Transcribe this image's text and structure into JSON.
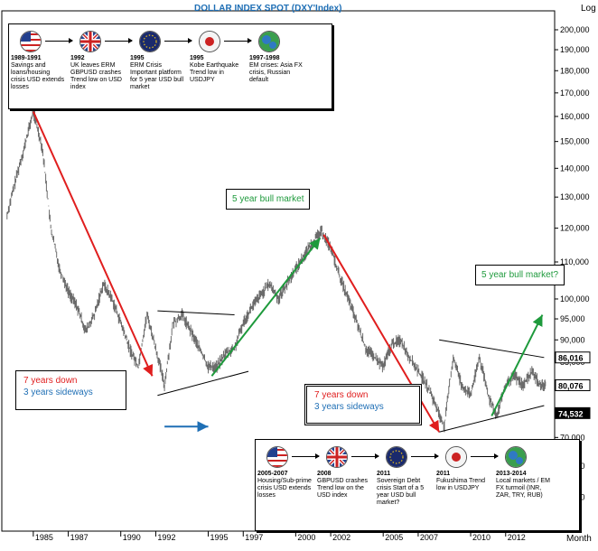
{
  "chart_data": {
    "type": "line",
    "title": "DOLLAR INDEX SPOT  (DXY'Index)",
    "y_axis_label": "Log",
    "x_axis_label": "Month",
    "y_ticks": [
      "60,000",
      "65,000",
      "70,000",
      "75,000",
      "80,000",
      "85,000",
      "90,000",
      "95,000",
      "100,000",
      "110,000",
      "120,000",
      "130,000",
      "140,000",
      "150,000",
      "160,000",
      "170,000",
      "180,000",
      "190,000",
      "200,000"
    ],
    "x_ticks": [
      "1985",
      "1987",
      "1990",
      "1992",
      "1995",
      "1997",
      "2000",
      "2002",
      "2005",
      "2007",
      "2010",
      "2012"
    ],
    "ylim": [
      55,
      210
    ],
    "y_scale": "log",
    "price_labels": [
      "86,016",
      "80,076",
      "74,532"
    ],
    "series": [
      {
        "values_by_year": [
          [
            1983.5,
            124
          ],
          [
            1984.0,
            136
          ],
          [
            1984.5,
            148
          ],
          [
            1985.0,
            162
          ],
          [
            1985.5,
            148
          ],
          [
            1986.0,
            120
          ],
          [
            1986.5,
            108
          ],
          [
            1987.0,
            102
          ],
          [
            1987.5,
            98
          ],
          [
            1988.0,
            92
          ],
          [
            1988.5,
            96
          ],
          [
            1989.0,
            104
          ],
          [
            1989.5,
            100
          ],
          [
            1990.0,
            94
          ],
          [
            1990.5,
            88
          ],
          [
            1991.0,
            84
          ],
          [
            1991.5,
            96
          ],
          [
            1992.0,
            88
          ],
          [
            1992.5,
            80
          ],
          [
            1993.0,
            94
          ],
          [
            1993.5,
            96
          ],
          [
            1994.0,
            92
          ],
          [
            1994.5,
            88
          ],
          [
            1995.0,
            84
          ],
          [
            1995.5,
            84
          ],
          [
            1996.0,
            87
          ],
          [
            1996.5,
            88
          ],
          [
            1997.0,
            94
          ],
          [
            1997.5,
            98
          ],
          [
            1998.0,
            101
          ],
          [
            1998.5,
            104
          ],
          [
            1999.0,
            100
          ],
          [
            1999.5,
            104
          ],
          [
            2000.0,
            108
          ],
          [
            2000.5,
            112
          ],
          [
            2001.0,
            116
          ],
          [
            2001.5,
            119
          ],
          [
            2002.0,
            114
          ],
          [
            2002.5,
            106
          ],
          [
            2003.0,
            100
          ],
          [
            2003.5,
            94
          ],
          [
            2004.0,
            88
          ],
          [
            2004.5,
            86
          ],
          [
            2005.0,
            84
          ],
          [
            2005.5,
            89
          ],
          [
            2006.0,
            90
          ],
          [
            2006.5,
            86
          ],
          [
            2007.0,
            83
          ],
          [
            2007.5,
            80
          ],
          [
            2008.0,
            76
          ],
          [
            2008.5,
            72
          ],
          [
            2009.0,
            86
          ],
          [
            2009.5,
            80
          ],
          [
            2010.0,
            78
          ],
          [
            2010.5,
            86
          ],
          [
            2011.0,
            78
          ],
          [
            2011.5,
            74
          ],
          [
            2012.0,
            80
          ],
          [
            2012.5,
            82
          ],
          [
            2013.0,
            80
          ],
          [
            2013.5,
            83
          ],
          [
            2014.0,
            80
          ],
          [
            2014.3,
            80
          ]
        ]
      }
    ],
    "annotations": [
      {
        "text": "5 year bull market",
        "color": "#1e9a3c"
      },
      {
        "text": "5 year bull market?",
        "color": "#1e9a3c"
      },
      {
        "text": "7 years down",
        "color": "#e01e1e"
      },
      {
        "text": "3 years sideways",
        "color": "#1f6fb5"
      },
      {
        "text": "7 years down",
        "color": "#e01e1e"
      },
      {
        "text": "3 years sideways",
        "color": "#1f6fb5"
      }
    ],
    "trend_lines": [
      {
        "color": "#e01e1e",
        "from": [
          1985.0,
          162
        ],
        "to": [
          1991.8,
          82
        ]
      },
      {
        "color": "#1e9a3c",
        "from": [
          1995.2,
          82
        ],
        "to": [
          2001.4,
          117
        ]
      },
      {
        "color": "#e01e1e",
        "from": [
          2001.6,
          118
        ],
        "to": [
          2008.2,
          71
        ]
      },
      {
        "color": "#1e9a3c",
        "from": [
          2011.2,
          74
        ],
        "to": [
          2014.1,
          96
        ]
      }
    ],
    "triangles": [
      {
        "lines": [
          [
            [
              1992.1,
              97
            ],
            [
              1996.5,
              96
            ]
          ],
          [
            [
              1992.1,
              78
            ],
            [
              1997.3,
              83
            ]
          ]
        ]
      },
      {
        "lines": [
          [
            [
              2008.2,
              90
            ],
            [
              2014.2,
              86
            ]
          ],
          [
            [
              2008.2,
              71
            ],
            [
              2014.2,
              76
            ]
          ]
        ]
      }
    ],
    "blue_arrows": [
      {
        "from": [
          1992.5,
          72
        ],
        "to": [
          1995.0,
          72
        ]
      },
      {
        "from": [
          2008.0,
          67
        ],
        "to": [
          2010.6,
          67
        ]
      }
    ]
  },
  "annotations": {
    "bull1": "5 year bull market",
    "bull2": "5 year bull market?",
    "down1": "7 years down",
    "side1": "3 years sideways",
    "down2": "7 years down",
    "side2": "3 years sideways"
  },
  "timeline_top": {
    "items": [
      {
        "year": "1989-1991",
        "text": "Savings and loans/housing crisis USD extends losses",
        "flag": "us"
      },
      {
        "year": "1992",
        "text": "UK leaves ERM GBPUSD crashes Trend low on USD index",
        "flag": "uk"
      },
      {
        "year": "1995",
        "text": "ERM Crisis Important platform for 5 year USD bull market",
        "flag": "eu"
      },
      {
        "year": "1995",
        "text": "Kobe Earthquake Trend low in USDJPY",
        "flag": "jp"
      },
      {
        "year": "1997-1998",
        "text": "EM crises: Asia FX crisis, Russian default",
        "flag": "globe"
      }
    ]
  },
  "timeline_bottom": {
    "items": [
      {
        "year": "2005-2007",
        "text": "Housing/Sub-prime crisis USD extends losses",
        "flag": "us"
      },
      {
        "year": "2008",
        "text": "GBPUSD crashes Trend low on the USD index",
        "flag": "uk"
      },
      {
        "year": "2011",
        "text": "Sovereign Debt crisis Start of a 5 year USD bull market?",
        "flag": "eu"
      },
      {
        "year": "2011",
        "text": "Fukushima Trend low in USDJPY",
        "flag": "jp"
      },
      {
        "year": "2013-2014",
        "text": "Local markets / EM FX turmoil (INR, ZAR, TRY, RUB)",
        "flag": "globe"
      }
    ]
  },
  "colors": {
    "down": "#e01e1e",
    "sideways": "#1f6fb5",
    "bull": "#1e9a3c",
    "title": "#1f6fb5",
    "price_line": "#6b6b6b"
  }
}
